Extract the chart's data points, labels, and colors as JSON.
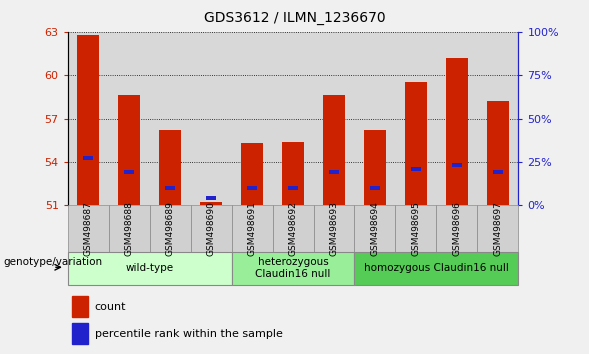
{
  "title": "GDS3612 / ILMN_1236670",
  "samples": [
    "GSM498687",
    "GSM498688",
    "GSM498689",
    "GSM498690",
    "GSM498691",
    "GSM498692",
    "GSM498693",
    "GSM498694",
    "GSM498695",
    "GSM498696",
    "GSM498697"
  ],
  "red_values": [
    62.8,
    58.6,
    56.2,
    51.25,
    55.3,
    55.4,
    58.6,
    56.2,
    59.5,
    61.2,
    58.2
  ],
  "blue_values": [
    54.3,
    53.3,
    52.2,
    51.5,
    52.2,
    52.2,
    53.3,
    52.2,
    53.5,
    53.8,
    53.3
  ],
  "ylim_left": [
    51,
    63
  ],
  "ylim_right": [
    0,
    100
  ],
  "yticks_left": [
    51,
    54,
    57,
    60,
    63
  ],
  "yticks_right": [
    0,
    25,
    50,
    75,
    100
  ],
  "red_color": "#cc2200",
  "blue_color": "#2222cc",
  "bar_bottom": 51.0,
  "group_starts": [
    0,
    4,
    7
  ],
  "group_ends": [
    3,
    6,
    10
  ],
  "group_labels": [
    "wild-type",
    "heterozygous\nClaudin16 null",
    "homozygous Claudin16 null"
  ],
  "group_colors": [
    "#ccffcc",
    "#99ee99",
    "#55cc55"
  ],
  "group_label_prefix": "genotype/variation",
  "plot_bg": "#ffffff",
  "col_bg": "#d8d8d8",
  "grid_color": "#000000",
  "legend_count": "count",
  "legend_pct": "percentile rank within the sample",
  "bar_width": 0.55
}
